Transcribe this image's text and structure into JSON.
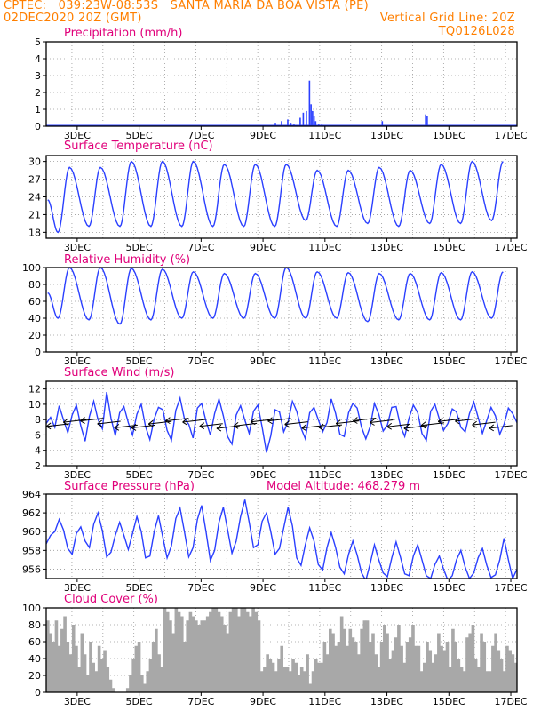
{
  "header": {
    "line1_left": "CPTEC:   039:23W-08:53S   SANTA MARIA DA BOA VISTA (PE)",
    "line2_left": "02DEC2020 20Z (GMT)",
    "line2_right": "Vertical Grid Line: 20Z",
    "line3_right": "TQ0126L028",
    "color": "#ff7f00"
  },
  "colors": {
    "title": "#e0007a",
    "series": "#2a3fff",
    "cloud": "#a8a8a8",
    "grid": "#9a9a9a",
    "arrows": "#000000"
  },
  "chart_data": [
    {
      "id": "precip",
      "type": "bar",
      "title": "Precipitation (mm/h)",
      "y_ticks": [
        "0",
        "1",
        "2",
        "3",
        "4",
        "5"
      ],
      "ylim": [
        0,
        5
      ],
      "x_tick_labels": [
        "3DEC",
        "5DEC",
        "7DEC",
        "9DEC",
        "11DEC",
        "13DEC",
        "15DEC",
        "17DEC"
      ],
      "x": [
        9.4,
        9.6,
        9.8,
        9.9,
        10.0,
        10.2,
        10.3,
        10.4,
        10.5,
        10.55,
        10.6,
        10.65,
        10.7,
        10.8,
        10.9,
        12.85,
        14.25,
        14.3
      ],
      "values": [
        0.2,
        0.3,
        0.4,
        0.2,
        0.1,
        0.5,
        0.8,
        0.9,
        2.7,
        1.3,
        0.9,
        0.6,
        0.3,
        0.1,
        0.1,
        0.3,
        0.7,
        0.6
      ]
    },
    {
      "id": "temp",
      "type": "line",
      "title": "Surface Temperature (nC)",
      "y_ticks": [
        "18",
        "21",
        "24",
        "27",
        "30"
      ],
      "ylim": [
        17,
        31
      ],
      "x_tick_labels": [
        "3DEC",
        "5DEC",
        "7DEC",
        "9DEC",
        "11DEC",
        "13DEC",
        "15DEC",
        "17DEC"
      ],
      "daily_max": [
        29,
        29,
        30,
        30,
        30,
        29.5,
        29.5,
        29.5,
        28.5,
        28.5,
        29,
        28.5,
        29.5,
        30,
        30
      ],
      "daily_min": [
        18,
        19,
        19,
        19,
        19,
        19,
        19,
        19,
        20,
        19,
        19.5,
        19,
        19.5,
        19.5,
        20
      ]
    },
    {
      "id": "rh",
      "type": "line",
      "title": "Relative Humidity (%)",
      "y_ticks": [
        "0",
        "20",
        "40",
        "60",
        "80",
        "100"
      ],
      "ylim": [
        0,
        100
      ],
      "x_tick_labels": [
        "3DEC",
        "5DEC",
        "7DEC",
        "9DEC",
        "11DEC",
        "13DEC",
        "15DEC",
        "17DEC"
      ],
      "daily_max": [
        100,
        100,
        99,
        98,
        95,
        93,
        93,
        100,
        95,
        94,
        93,
        93,
        94,
        95,
        95
      ],
      "daily_min": [
        40,
        38,
        33,
        38,
        40,
        40,
        40,
        40,
        40,
        40,
        36,
        38,
        38,
        38,
        40
      ]
    },
    {
      "id": "wind",
      "type": "line",
      "title": "Surface Wind (m/s)",
      "y_ticks": [
        "2",
        "4",
        "6",
        "8",
        "10",
        "12"
      ],
      "ylim": [
        2,
        13
      ],
      "x_tick_labels": [
        "3DEC",
        "5DEC",
        "7DEC",
        "9DEC",
        "11DEC",
        "13DEC",
        "15DEC",
        "17DEC"
      ],
      "values": [
        7.5,
        8.3,
        7.0,
        9.8,
        8.0,
        6.3,
        8.6,
        9.9,
        7.2,
        5.2,
        8.4,
        10.4,
        8.0,
        6.8,
        11.6,
        8.2,
        5.9,
        8.9,
        9.7,
        7.6,
        6.0,
        8.7,
        10.0,
        7.1,
        5.4,
        8.1,
        9.6,
        9.3,
        6.6,
        5.3,
        9.2,
        10.8,
        8.1,
        7.4,
        5.6,
        9.5,
        10.1,
        7.8,
        6.0,
        8.8,
        10.7,
        8.5,
        5.8,
        4.8,
        8.6,
        9.8,
        7.9,
        6.2,
        9.1,
        9.9,
        7.0,
        3.7,
        5.9,
        9.3,
        9.0,
        6.4,
        7.7,
        10.4,
        9.1,
        6.9,
        5.5,
        8.9,
        9.6,
        8.0,
        6.4,
        7.6,
        10.7,
        8.8,
        6.1,
        5.8,
        8.9,
        10.1,
        9.5,
        7.0,
        5.5,
        7.1,
        10.1,
        8.7,
        6.5,
        7.3,
        9.6,
        9.7,
        7.2,
        5.8,
        8.2,
        9.9,
        8.9,
        6.2,
        5.3,
        9.1,
        10.0,
        8.1,
        6.6,
        7.5,
        9.4,
        9.0,
        7.0,
        6.4,
        8.8,
        10.3,
        8.3,
        6.2,
        7.9,
        9.6,
        8.5,
        6.1,
        7.4,
        9.5,
        8.8,
        7.6
      ]
    },
    {
      "id": "pres",
      "type": "line",
      "title": "Surface Pressure (hPa)",
      "extra_label": "Model Altitude: 468.279 m",
      "y_ticks": [
        "956",
        "958",
        "960",
        "962",
        "964"
      ],
      "ylim": [
        955,
        964
      ],
      "x_tick_labels": [
        "3DEC",
        "5DEC",
        "7DEC",
        "9DEC",
        "11DEC",
        "13DEC",
        "15DEC",
        "17DEC"
      ],
      "values": [
        958.7,
        959.6,
        960.0,
        961.3,
        960.2,
        958.2,
        957.6,
        959.8,
        960.5,
        959.0,
        958.3,
        960.8,
        962.0,
        960.1,
        957.3,
        957.8,
        959.6,
        961.0,
        959.6,
        958.1,
        959.8,
        961.6,
        960.0,
        957.2,
        957.4,
        960.0,
        961.7,
        959.4,
        957.2,
        958.5,
        961.4,
        962.5,
        960.0,
        957.3,
        958.3,
        961.3,
        962.8,
        960.0,
        956.9,
        958.0,
        961.0,
        962.6,
        960.2,
        957.7,
        959.0,
        961.6,
        963.4,
        961.0,
        958.3,
        958.6,
        961.1,
        962.0,
        960.0,
        957.6,
        958.2,
        960.4,
        962.6,
        960.6,
        957.2,
        956.4,
        958.6,
        960.4,
        959.0,
        956.5,
        955.9,
        958.3,
        959.9,
        958.3,
        956.2,
        955.5,
        957.6,
        959.0,
        957.5,
        955.6,
        954.8,
        956.6,
        958.6,
        957.0,
        955.6,
        955.2,
        957.2,
        958.9,
        957.3,
        955.5,
        955.3,
        957.4,
        958.6,
        957.0,
        955.3,
        955.0,
        956.5,
        957.4,
        956.0,
        954.8,
        955.3,
        957.0,
        958.0,
        956.2,
        955.0,
        955.6,
        957.2,
        958.2,
        956.4,
        955.1,
        955.4,
        957.0,
        959.3,
        957.0,
        955.0,
        956.0
      ]
    },
    {
      "id": "cloud",
      "type": "area",
      "title": "Cloud Cover (%)",
      "y_ticks": [
        "0",
        "20",
        "40",
        "60",
        "80",
        "100"
      ],
      "ylim": [
        0,
        100
      ],
      "x_tick_labels": [
        "3DEC",
        "5DEC",
        "7DEC",
        "9DEC",
        "11DEC",
        "13DEC",
        "15DEC",
        "17DEC"
      ],
      "values": [
        85,
        70,
        60,
        85,
        55,
        75,
        90,
        60,
        45,
        80,
        55,
        30,
        70,
        45,
        20,
        60,
        35,
        25,
        55,
        40,
        50,
        30,
        15,
        5,
        0,
        0,
        0,
        0,
        5,
        20,
        40,
        55,
        60,
        20,
        10,
        25,
        40,
        60,
        75,
        45,
        30,
        100,
        95,
        85,
        70,
        100,
        95,
        90,
        60,
        85,
        95,
        90,
        85,
        80,
        85,
        85,
        90,
        95,
        100,
        100,
        95,
        90,
        80,
        70,
        95,
        100,
        100,
        90,
        100,
        100,
        95,
        90,
        100,
        95,
        85,
        25,
        30,
        45,
        40,
        35,
        25,
        40,
        55,
        30,
        30,
        25,
        40,
        35,
        20,
        30,
        25,
        45,
        10,
        25,
        40,
        35,
        35,
        60,
        45,
        75,
        70,
        55,
        60,
        90,
        75,
        55,
        75,
        65,
        60,
        45,
        75,
        85,
        85,
        60,
        70,
        45,
        30,
        60,
        80,
        70,
        40,
        50,
        65,
        80,
        55,
        35,
        60,
        65,
        80,
        55,
        55,
        25,
        35,
        60,
        50,
        35,
        45,
        70,
        55,
        50,
        60,
        30,
        75,
        60,
        40,
        30,
        25,
        65,
        70,
        80,
        40,
        30,
        70,
        60,
        25,
        25,
        55,
        70,
        50,
        40,
        25,
        55,
        50,
        45,
        35
      ]
    }
  ]
}
